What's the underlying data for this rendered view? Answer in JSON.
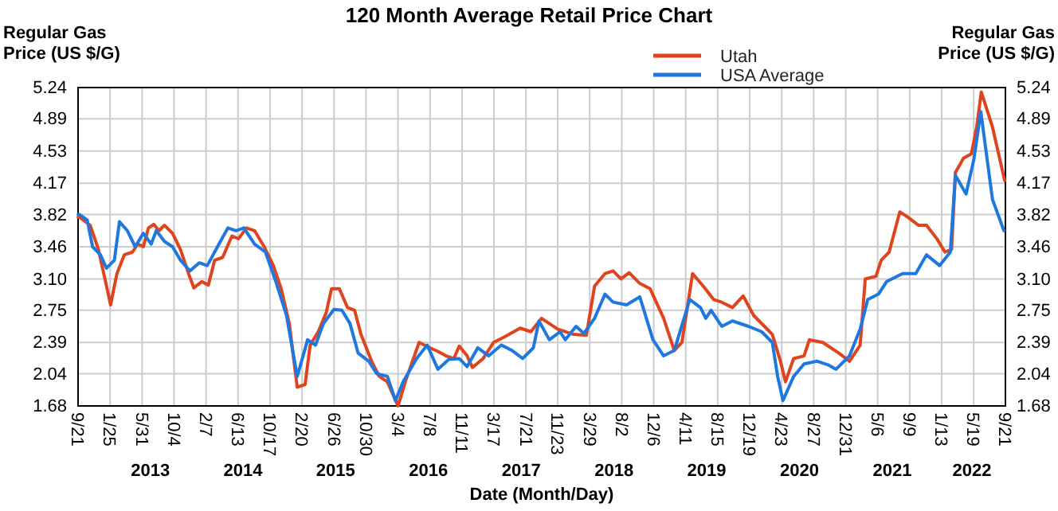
{
  "chart_data": {
    "type": "line",
    "title": "120 Month Average Retail Price Chart",
    "xlabel": "Date (Month/Day)",
    "ylabel": "Regular Gas Price (US $/G)",
    "y2label": "Regular Gas Price (US $/G)",
    "xlim": [
      "2012-09-21",
      "2022-09-21"
    ],
    "xticks": [
      {
        "value": "2012-09-21",
        "label": "9/21"
      },
      {
        "value": "2013-01-25",
        "label": "1/25"
      },
      {
        "value": "2013-05-31",
        "label": "5/31"
      },
      {
        "value": "2013-10-04",
        "label": "10/4"
      },
      {
        "value": "2014-02-07",
        "label": "2/7"
      },
      {
        "value": "2014-06-13",
        "label": "6/13"
      },
      {
        "value": "2014-10-17",
        "label": "10/17"
      },
      {
        "value": "2015-02-20",
        "label": "2/20"
      },
      {
        "value": "2015-06-26",
        "label": "6/26"
      },
      {
        "value": "2015-10-30",
        "label": "10/30"
      },
      {
        "value": "2016-03-04",
        "label": "3/4"
      },
      {
        "value": "2016-07-08",
        "label": "7/8"
      },
      {
        "value": "2016-11-11",
        "label": "11/11"
      },
      {
        "value": "2017-03-17",
        "label": "3/17"
      },
      {
        "value": "2017-07-21",
        "label": "7/21"
      },
      {
        "value": "2017-11-23",
        "label": "11/23"
      },
      {
        "value": "2018-03-29",
        "label": "3/29"
      },
      {
        "value": "2018-08-02",
        "label": "8/2"
      },
      {
        "value": "2018-12-06",
        "label": "12/6"
      },
      {
        "value": "2019-04-11",
        "label": "4/11"
      },
      {
        "value": "2019-08-15",
        "label": "8/15"
      },
      {
        "value": "2019-12-19",
        "label": "12/19"
      },
      {
        "value": "2020-04-23",
        "label": "4/23"
      },
      {
        "value": "2020-08-27",
        "label": "8/27"
      },
      {
        "value": "2020-12-31",
        "label": "12/31"
      },
      {
        "value": "2021-05-06",
        "label": "5/6"
      },
      {
        "value": "2021-09-09",
        "label": "9/9"
      },
      {
        "value": "2022-01-13",
        "label": "1/13"
      },
      {
        "value": "2022-05-19",
        "label": "5/19"
      },
      {
        "value": "2022-09-21",
        "label": "9/21"
      }
    ],
    "ylim": [
      1.68,
      5.24
    ],
    "yticks": [
      1.68,
      2.04,
      2.39,
      2.75,
      {
        "value": 3.1,
        "label": "3.10"
      },
      3.46,
      3.82,
      4.17,
      4.53,
      4.89,
      5.24
    ],
    "y2lim": [
      1.68,
      5.24
    ],
    "y2ticks": [
      1.68,
      2.04,
      2.39,
      2.75,
      {
        "value": 3.1,
        "label": "3.10"
      },
      3.46,
      3.82,
      4.17,
      4.53,
      4.89,
      5.24
    ],
    "grid": true,
    "legend": "top right",
    "line_style": "solid",
    "marker": "none",
    "annotations": [
      "2013",
      "2014",
      "2015",
      "2016",
      "2017",
      "2018",
      "2019",
      "2020",
      "2021",
      "2022"
    ],
    "series": [
      {
        "name": "Utah",
        "color": "#e0441e",
        "x": [
          "2012-09-21",
          "2012-09-27",
          "2012-11-08",
          "2012-12-10",
          "2013-01-11",
          "2013-01-27",
          "2013-02-21",
          "2013-03-22",
          "2013-04-23",
          "2013-05-14",
          "2013-06-05",
          "2013-06-25",
          "2013-07-16",
          "2013-08-06",
          "2013-08-27",
          "2013-09-28",
          "2013-10-29",
          "2013-11-30",
          "2013-12-21",
          "2014-01-21",
          "2014-02-16",
          "2014-03-13",
          "2014-04-13",
          "2014-05-20",
          "2014-06-15",
          "2014-07-16",
          "2014-08-17",
          "2014-09-24",
          "2014-10-30",
          "2014-11-30",
          "2015-01-01",
          "2015-02-01",
          "2015-03-04",
          "2015-03-24",
          "2015-04-25",
          "2015-05-26",
          "2015-06-16",
          "2015-07-17",
          "2015-08-18",
          "2015-09-15",
          "2015-10-10",
          "2015-11-21",
          "2015-12-21",
          "2016-01-22",
          "2016-03-04",
          "2016-04-05",
          "2016-05-26",
          "2016-07-08",
          "2016-08-08",
          "2016-09-09",
          "2016-10-10",
          "2016-10-31",
          "2016-12-01",
          "2016-12-22",
          "2017-02-02",
          "2017-03-15",
          "2017-04-26",
          "2017-06-28",
          "2017-08-09",
          "2017-09-20",
          "2017-11-22",
          "2018-01-24",
          "2018-03-16",
          "2018-04-17",
          "2018-05-28",
          "2018-06-29",
          "2018-07-30",
          "2018-08-31",
          "2018-10-12",
          "2018-11-22",
          "2019-01-14",
          "2019-02-25",
          "2019-03-27",
          "2019-05-08",
          "2019-06-19",
          "2019-07-30",
          "2019-08-31",
          "2019-10-12",
          "2019-11-23",
          "2020-01-04",
          "2020-02-15",
          "2020-03-17",
          "2020-04-18",
          "2020-05-08",
          "2020-06-09",
          "2020-07-20",
          "2020-08-10",
          "2020-10-02",
          "2020-12-04",
          "2021-01-15",
          "2021-02-26",
          "2021-03-18",
          "2021-04-29",
          "2021-05-20",
          "2021-06-20",
          "2021-08-01",
          "2021-09-02",
          "2021-10-14",
          "2021-11-14",
          "2021-12-25",
          "2022-01-26",
          "2022-02-21",
          "2022-03-08",
          "2022-04-09",
          "2022-05-10",
          "2022-05-31",
          "2022-06-18",
          "2022-08-01",
          "2022-09-18"
        ],
        "values": [
          3.79,
          3.79,
          3.7,
          3.43,
          3.02,
          2.81,
          3.16,
          3.37,
          3.4,
          3.49,
          3.46,
          3.67,
          3.71,
          3.64,
          3.7,
          3.61,
          3.43,
          3.16,
          3.0,
          3.07,
          3.03,
          3.31,
          3.34,
          3.58,
          3.55,
          3.67,
          3.64,
          3.46,
          3.25,
          2.99,
          2.6,
          1.89,
          1.92,
          2.36,
          2.51,
          2.72,
          2.99,
          2.99,
          2.78,
          2.75,
          2.48,
          2.18,
          2.01,
          1.95,
          1.68,
          1.98,
          2.39,
          2.33,
          2.29,
          2.24,
          2.21,
          2.35,
          2.24,
          2.11,
          2.21,
          2.39,
          2.45,
          2.55,
          2.51,
          2.66,
          2.54,
          2.48,
          2.47,
          3.02,
          3.16,
          3.19,
          3.1,
          3.17,
          3.05,
          2.99,
          2.66,
          2.3,
          2.39,
          3.16,
          3.02,
          2.87,
          2.84,
          2.78,
          2.91,
          2.69,
          2.57,
          2.48,
          2.18,
          1.95,
          2.21,
          2.24,
          2.42,
          2.39,
          2.27,
          2.18,
          2.36,
          3.1,
          3.13,
          3.31,
          3.4,
          3.85,
          3.79,
          3.7,
          3.7,
          3.55,
          3.4,
          3.43,
          4.29,
          4.45,
          4.5,
          4.8,
          5.19,
          4.8,
          4.2
        ]
      },
      {
        "name": "USA Average",
        "color": "#1f78e0",
        "x": [
          "2012-09-21",
          "2012-09-27",
          "2012-10-27",
          "2012-11-17",
          "2012-12-18",
          "2013-01-11",
          "2013-02-11",
          "2013-03-03",
          "2013-04-03",
          "2013-05-04",
          "2013-06-05",
          "2013-07-06",
          "2013-07-26",
          "2013-08-27",
          "2013-09-28",
          "2013-10-29",
          "2013-12-06",
          "2014-01-11",
          "2014-02-12",
          "2014-03-24",
          "2014-05-04",
          "2014-06-05",
          "2014-07-06",
          "2014-08-17",
          "2014-09-29",
          "2014-11-09",
          "2014-12-21",
          "2015-02-01",
          "2015-03-14",
          "2015-04-14",
          "2015-05-15",
          "2015-06-26",
          "2015-07-27",
          "2015-08-28",
          "2015-09-29",
          "2015-11-10",
          "2015-12-11",
          "2016-01-22",
          "2016-02-23",
          "2016-03-24",
          "2016-05-16",
          "2016-06-27",
          "2016-08-08",
          "2016-09-20",
          "2016-10-31",
          "2016-12-01",
          "2017-01-12",
          "2017-02-24",
          "2017-04-15",
          "2017-05-27",
          "2017-07-08",
          "2017-08-19",
          "2017-09-10",
          "2017-10-21",
          "2017-12-02",
          "2017-12-23",
          "2018-02-03",
          "2018-03-06",
          "2018-04-17",
          "2018-05-28",
          "2018-06-29",
          "2018-08-21",
          "2018-10-12",
          "2018-12-03",
          "2019-01-14",
          "2019-02-25",
          "2019-04-27",
          "2019-06-08",
          "2019-06-29",
          "2019-07-20",
          "2019-08-31",
          "2019-10-12",
          "2019-12-14",
          "2020-02-04",
          "2020-03-17",
          "2020-04-07",
          "2020-04-28",
          "2020-06-09",
          "2020-07-20",
          "2020-09-10",
          "2020-10-22",
          "2020-11-23",
          "2021-01-15",
          "2021-02-26",
          "2021-03-28",
          "2021-05-09",
          "2021-06-10",
          "2021-08-12",
          "2021-10-03",
          "2021-11-14",
          "2022-01-05",
          "2022-02-16",
          "2022-03-08",
          "2022-04-19",
          "2022-05-20",
          "2022-06-16",
          "2022-08-01",
          "2022-09-15"
        ],
        "values": [
          3.82,
          3.82,
          3.76,
          3.46,
          3.37,
          3.22,
          3.31,
          3.74,
          3.64,
          3.46,
          3.61,
          3.49,
          3.64,
          3.52,
          3.46,
          3.31,
          3.19,
          3.28,
          3.25,
          3.46,
          3.67,
          3.64,
          3.67,
          3.49,
          3.4,
          3.07,
          2.69,
          2.01,
          2.42,
          2.36,
          2.6,
          2.76,
          2.75,
          2.6,
          2.27,
          2.18,
          2.04,
          2.01,
          1.74,
          1.95,
          2.21,
          2.36,
          2.09,
          2.2,
          2.21,
          2.12,
          2.33,
          2.24,
          2.36,
          2.3,
          2.21,
          2.33,
          2.63,
          2.42,
          2.51,
          2.42,
          2.57,
          2.49,
          2.66,
          2.93,
          2.84,
          2.81,
          2.9,
          2.42,
          2.24,
          2.3,
          2.87,
          2.78,
          2.66,
          2.75,
          2.57,
          2.63,
          2.57,
          2.51,
          2.39,
          2.01,
          1.74,
          2.01,
          2.15,
          2.18,
          2.14,
          2.09,
          2.24,
          2.54,
          2.87,
          2.93,
          3.07,
          3.16,
          3.16,
          3.37,
          3.25,
          3.4,
          4.26,
          4.05,
          4.44,
          4.97,
          3.99,
          3.64
        ]
      }
    ]
  }
}
